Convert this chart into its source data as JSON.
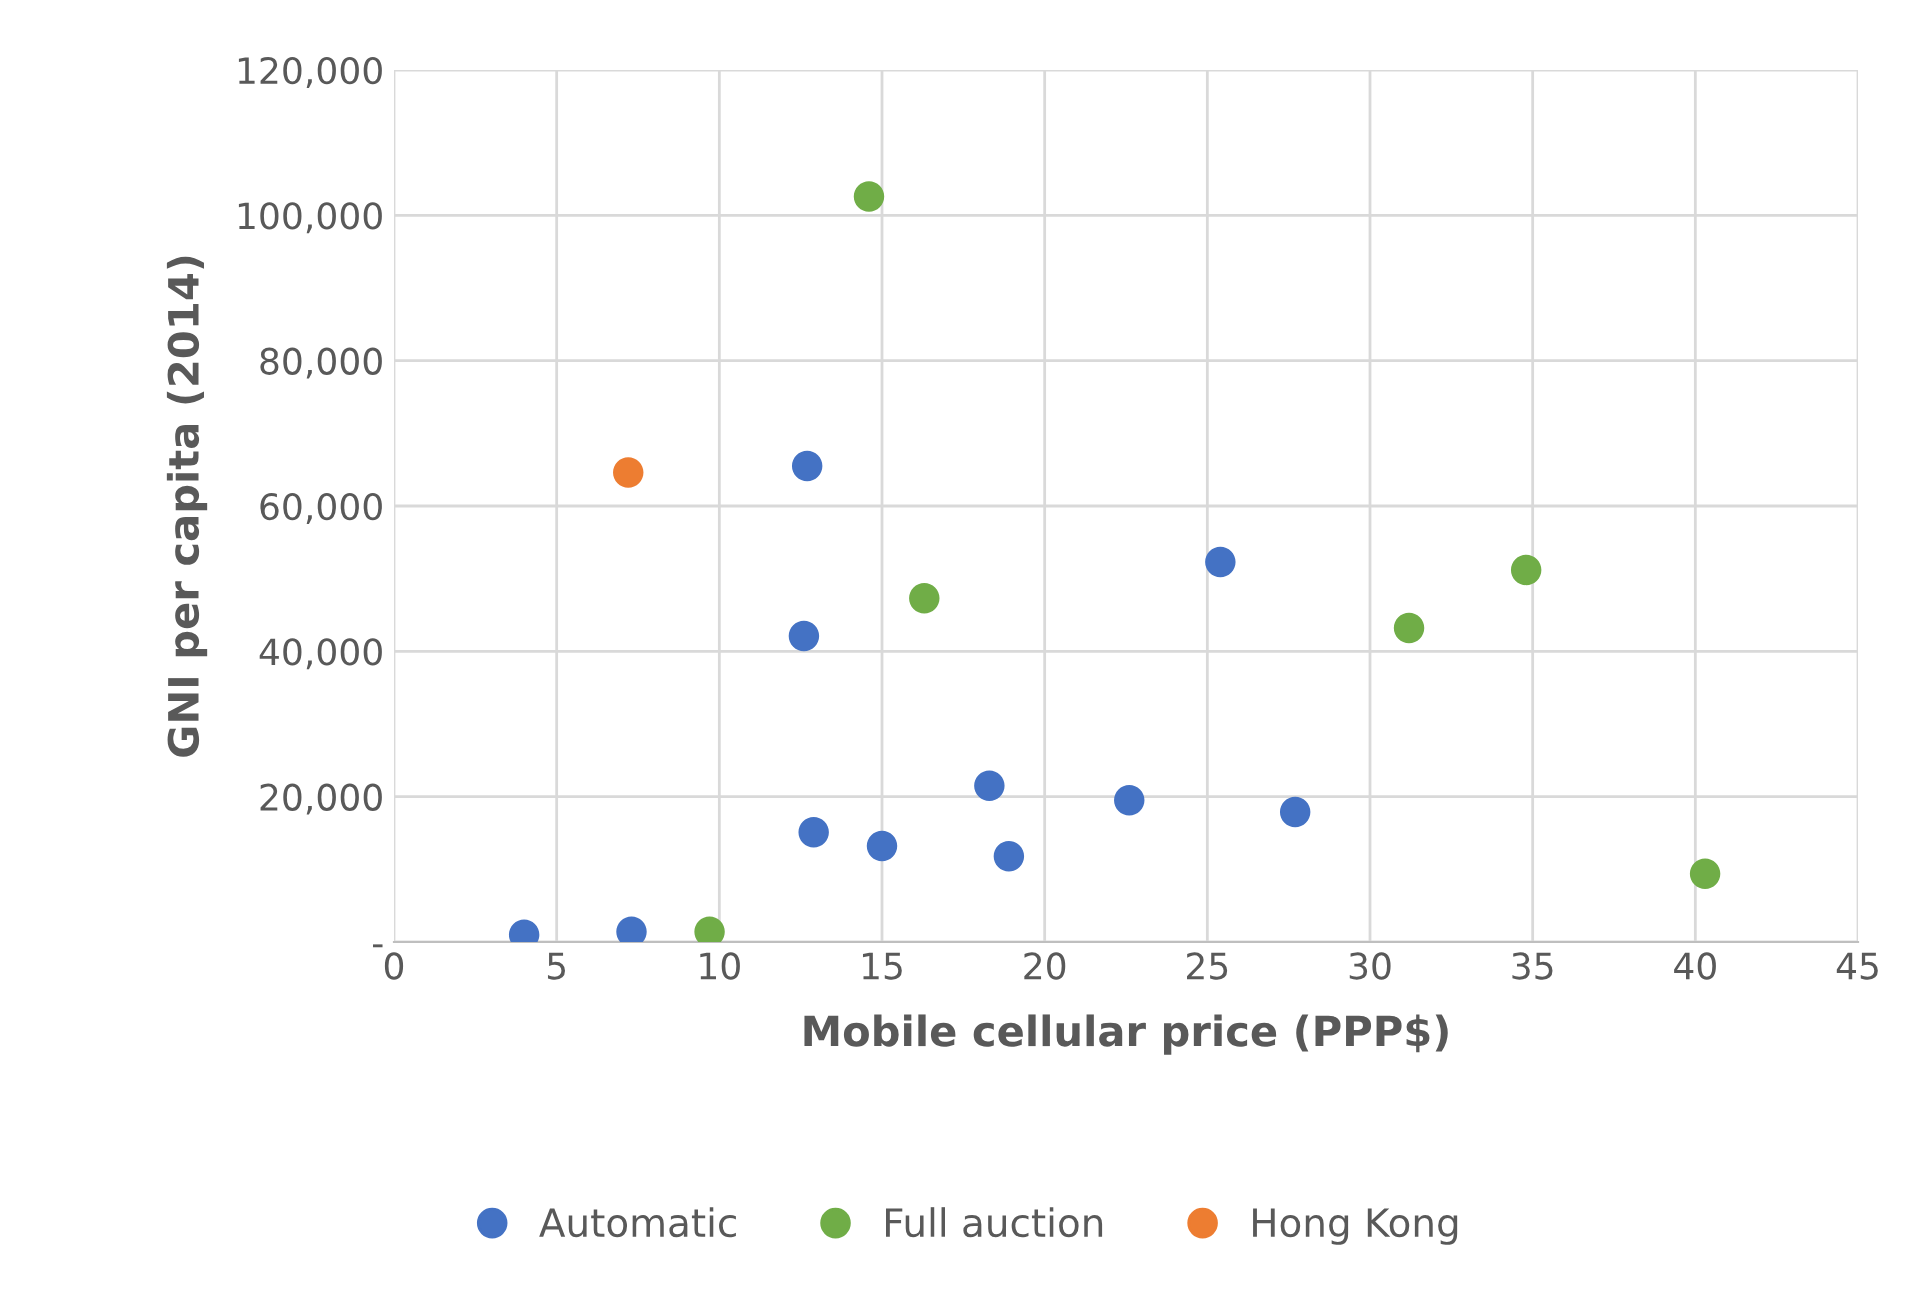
{
  "chart_data": {
    "type": "scatter",
    "xlabel": "Mobile cellular price (PPP$)",
    "ylabel": "GNI per capita (2014)",
    "xlim": [
      0,
      45
    ],
    "xticks": [
      0,
      5,
      10,
      15,
      20,
      25,
      30,
      35,
      40,
      45
    ],
    "ylim": [
      0,
      120000
    ],
    "yticks": [
      {
        "value": 0,
        "label": "-"
      },
      {
        "value": 20000,
        "label": "20,000"
      },
      {
        "value": 40000,
        "label": "40,000"
      },
      {
        "value": 60000,
        "label": "60,000"
      },
      {
        "value": 80000,
        "label": "80,000"
      },
      {
        "value": 100000,
        "label": "100,000"
      },
      {
        "value": 120000,
        "label": "120,000"
      }
    ],
    "grid": true,
    "legend": "bottom",
    "marker": "circle",
    "series": [
      {
        "name": "Automatic",
        "color": "#4472c4",
        "x": [
          4.0,
          7.3,
          12.7,
          12.6,
          12.9,
          15.0,
          18.3,
          18.9,
          22.6,
          25.4,
          27.7
        ],
        "values": [
          1000,
          1400,
          65500,
          42100,
          15100,
          13200,
          21500,
          11800,
          19500,
          52300,
          17900
        ]
      },
      {
        "name": "Full auction",
        "color": "#70ad47",
        "x": [
          9.7,
          14.6,
          16.3,
          31.2,
          34.8,
          40.3
        ],
        "values": [
          1400,
          102600,
          47300,
          43200,
          51200,
          9400
        ]
      },
      {
        "name": "Hong Kong",
        "color": "#ed7d31",
        "x": [
          7.2
        ],
        "values": [
          64600
        ]
      }
    ]
  }
}
